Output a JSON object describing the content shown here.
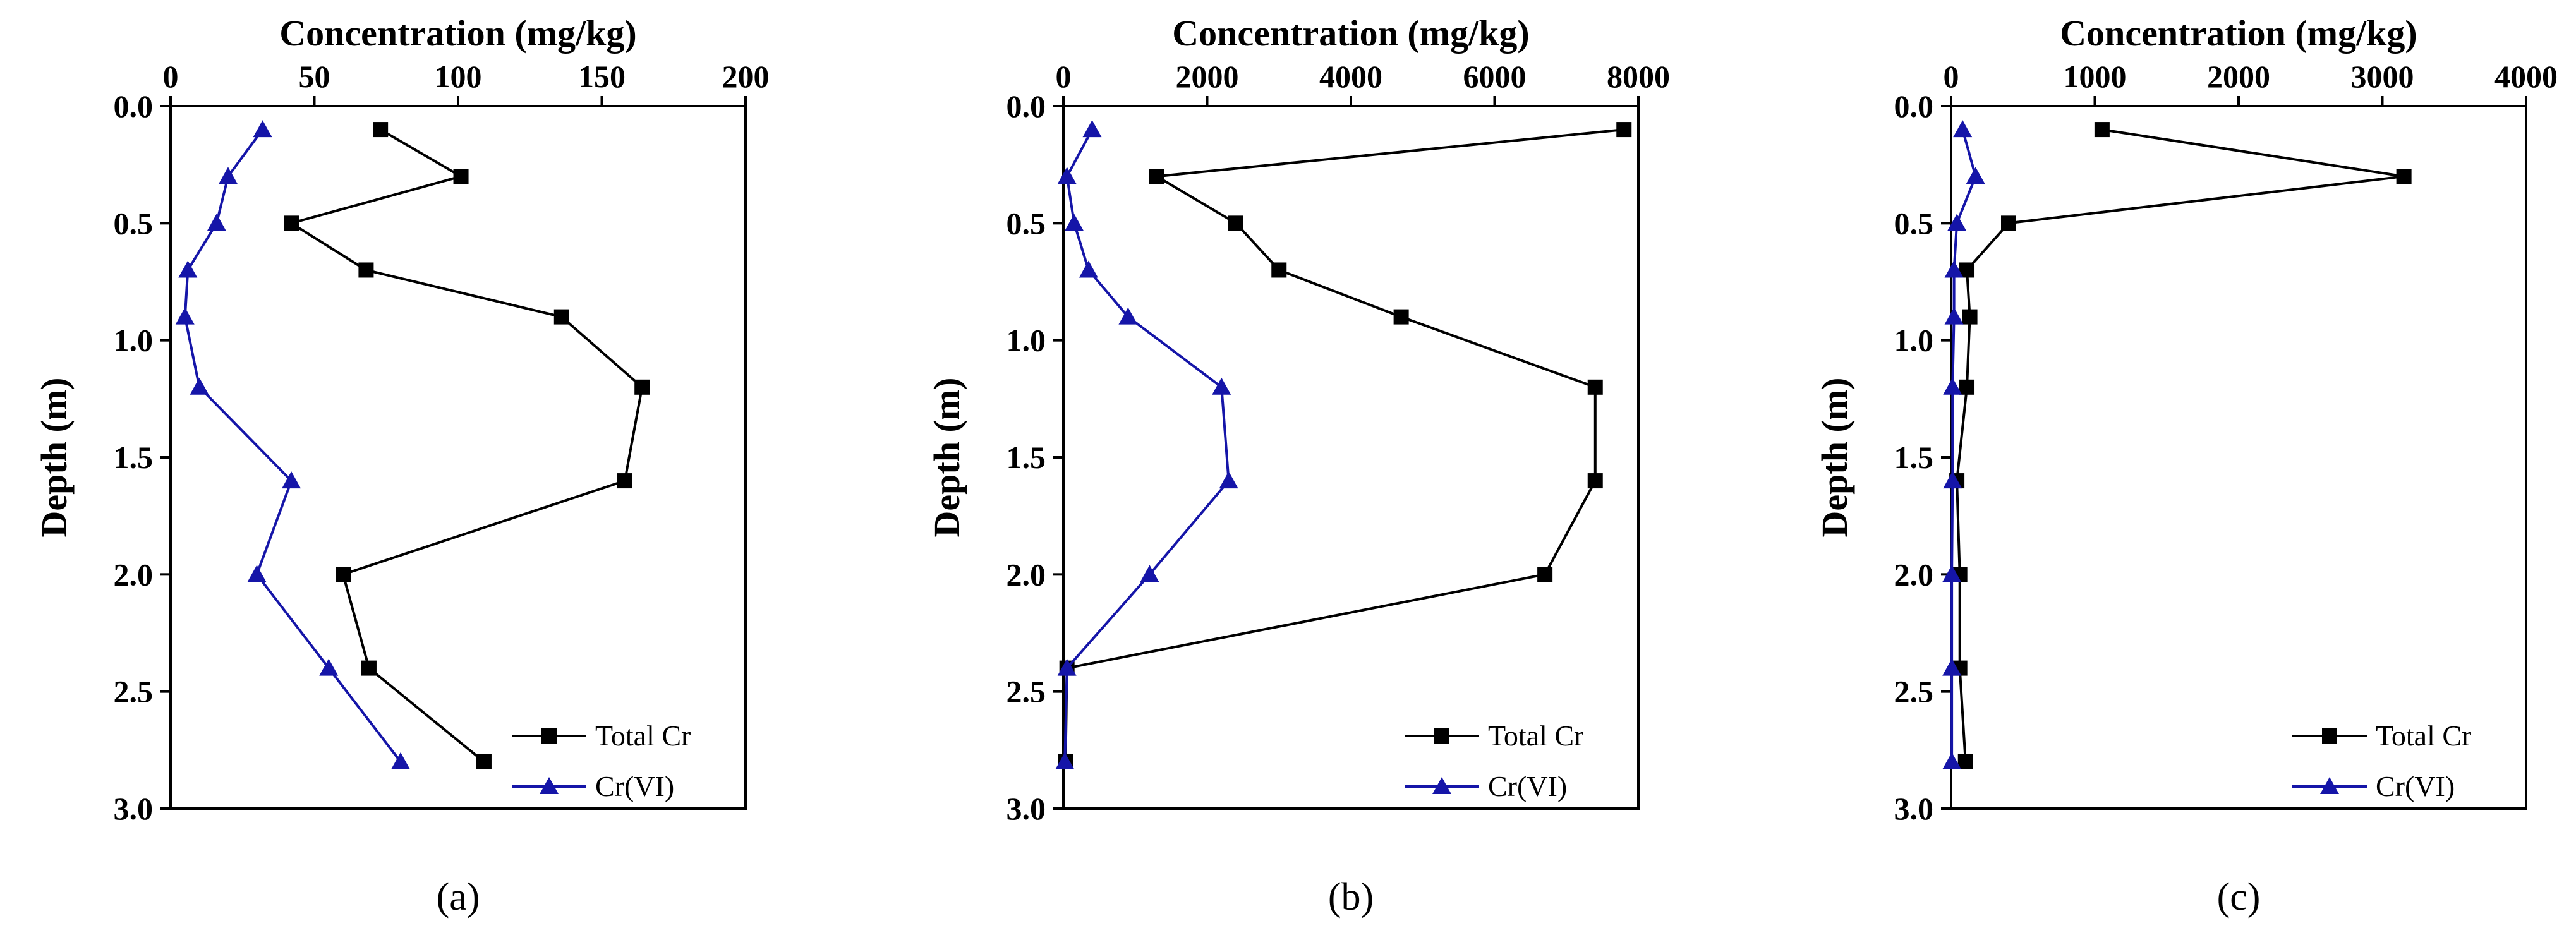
{
  "chart_data": [
    {
      "type": "line",
      "panel_label": "(a)",
      "xlabel": "Concentration (mg/kg)",
      "ylabel": "Depth (m)",
      "xlim": [
        0,
        200
      ],
      "ylim": [
        0,
        3.0
      ],
      "y_inverted": true,
      "x_axis_position": "top",
      "x_ticks": [
        0,
        50,
        100,
        150,
        200
      ],
      "x_tick_labels": [
        "0",
        "50",
        "100",
        "150",
        "200"
      ],
      "y_ticks": [
        0,
        0.5,
        1.0,
        1.5,
        2.0,
        2.5,
        3.0
      ],
      "y_tick_labels": [
        "0.0",
        "0.5",
        "1.0",
        "1.5",
        "2.0",
        "2.5",
        "3.0"
      ],
      "legend_position": "bottom-right",
      "series": [
        {
          "name": "Total Cr",
          "marker": "square",
          "color": "#000000",
          "points": [
            {
              "depth": 0.1,
              "value": 73
            },
            {
              "depth": 0.3,
              "value": 101
            },
            {
              "depth": 0.5,
              "value": 42
            },
            {
              "depth": 0.7,
              "value": 68
            },
            {
              "depth": 0.9,
              "value": 136
            },
            {
              "depth": 1.2,
              "value": 164
            },
            {
              "depth": 1.6,
              "value": 158
            },
            {
              "depth": 2.0,
              "value": 60
            },
            {
              "depth": 2.4,
              "value": 69
            },
            {
              "depth": 2.8,
              "value": 109
            }
          ]
        },
        {
          "name": "Cr(VI)",
          "marker": "triangle",
          "color": "#1515a8",
          "points": [
            {
              "depth": 0.1,
              "value": 32
            },
            {
              "depth": 0.3,
              "value": 20
            },
            {
              "depth": 0.5,
              "value": 16
            },
            {
              "depth": 0.7,
              "value": 6
            },
            {
              "depth": 0.9,
              "value": 5
            },
            {
              "depth": 1.2,
              "value": 10
            },
            {
              "depth": 1.6,
              "value": 42
            },
            {
              "depth": 2.0,
              "value": 30
            },
            {
              "depth": 2.4,
              "value": 55
            },
            {
              "depth": 2.8,
              "value": 80
            }
          ]
        }
      ]
    },
    {
      "type": "line",
      "panel_label": "(b)",
      "xlabel": "Concentration (mg/kg)",
      "ylabel": "Depth (m)",
      "xlim": [
        0,
        8000
      ],
      "ylim": [
        0,
        3.0
      ],
      "y_inverted": true,
      "x_axis_position": "top",
      "x_ticks": [
        0,
        2000,
        4000,
        6000,
        8000
      ],
      "x_tick_labels": [
        "0",
        "2000",
        "4000",
        "6000",
        "8000"
      ],
      "y_ticks": [
        0,
        0.5,
        1.0,
        1.5,
        2.0,
        2.5,
        3.0
      ],
      "y_tick_labels": [
        "0.0",
        "0.5",
        "1.0",
        "1.5",
        "2.0",
        "2.5",
        "3.0"
      ],
      "legend_position": "bottom-right",
      "series": [
        {
          "name": "Total Cr",
          "marker": "square",
          "color": "#000000",
          "points": [
            {
              "depth": 0.1,
              "value": 7800
            },
            {
              "depth": 0.3,
              "value": 1300
            },
            {
              "depth": 0.5,
              "value": 2400
            },
            {
              "depth": 0.7,
              "value": 3000
            },
            {
              "depth": 0.9,
              "value": 4700
            },
            {
              "depth": 1.2,
              "value": 7400
            },
            {
              "depth": 1.6,
              "value": 7400
            },
            {
              "depth": 2.0,
              "value": 6700
            },
            {
              "depth": 2.4,
              "value": 50
            },
            {
              "depth": 2.8,
              "value": 30
            }
          ]
        },
        {
          "name": "Cr(VI)",
          "marker": "triangle",
          "color": "#1515a8",
          "points": [
            {
              "depth": 0.1,
              "value": 400
            },
            {
              "depth": 0.3,
              "value": 50
            },
            {
              "depth": 0.5,
              "value": 150
            },
            {
              "depth": 0.7,
              "value": 350
            },
            {
              "depth": 0.9,
              "value": 900
            },
            {
              "depth": 1.2,
              "value": 2200
            },
            {
              "depth": 1.6,
              "value": 2300
            },
            {
              "depth": 2.0,
              "value": 1200
            },
            {
              "depth": 2.4,
              "value": 50
            },
            {
              "depth": 2.8,
              "value": 20
            }
          ]
        }
      ]
    },
    {
      "type": "line",
      "panel_label": "(c)",
      "xlabel": "Concentration (mg/kg)",
      "ylabel": "Depth (m)",
      "xlim": [
        0,
        4000
      ],
      "ylim": [
        0,
        3.0
      ],
      "y_inverted": true,
      "x_axis_position": "top",
      "x_ticks": [
        0,
        1000,
        2000,
        3000,
        4000
      ],
      "x_tick_labels": [
        "0",
        "1000",
        "2000",
        "3000",
        "4000"
      ],
      "y_ticks": [
        0,
        0.5,
        1.0,
        1.5,
        2.0,
        2.5,
        3.0
      ],
      "y_tick_labels": [
        "0.0",
        "0.5",
        "1.0",
        "1.5",
        "2.0",
        "2.5",
        "3.0"
      ],
      "legend_position": "bottom-right",
      "series": [
        {
          "name": "Total Cr",
          "marker": "square",
          "color": "#000000",
          "points": [
            {
              "depth": 0.1,
              "value": 1050
            },
            {
              "depth": 0.3,
              "value": 3150
            },
            {
              "depth": 0.5,
              "value": 400
            },
            {
              "depth": 0.7,
              "value": 110
            },
            {
              "depth": 0.9,
              "value": 130
            },
            {
              "depth": 1.2,
              "value": 110
            },
            {
              "depth": 1.6,
              "value": 40
            },
            {
              "depth": 2.0,
              "value": 60
            },
            {
              "depth": 2.4,
              "value": 60
            },
            {
              "depth": 2.8,
              "value": 100
            }
          ]
        },
        {
          "name": "Cr(VI)",
          "marker": "triangle",
          "color": "#1515a8",
          "points": [
            {
              "depth": 0.1,
              "value": 80
            },
            {
              "depth": 0.3,
              "value": 170
            },
            {
              "depth": 0.5,
              "value": 40
            },
            {
              "depth": 0.7,
              "value": 20
            },
            {
              "depth": 0.9,
              "value": 20
            },
            {
              "depth": 1.2,
              "value": 10
            },
            {
              "depth": 1.6,
              "value": 10
            },
            {
              "depth": 2.0,
              "value": 5
            },
            {
              "depth": 2.4,
              "value": 5
            },
            {
              "depth": 2.8,
              "value": 5
            }
          ]
        }
      ]
    }
  ]
}
